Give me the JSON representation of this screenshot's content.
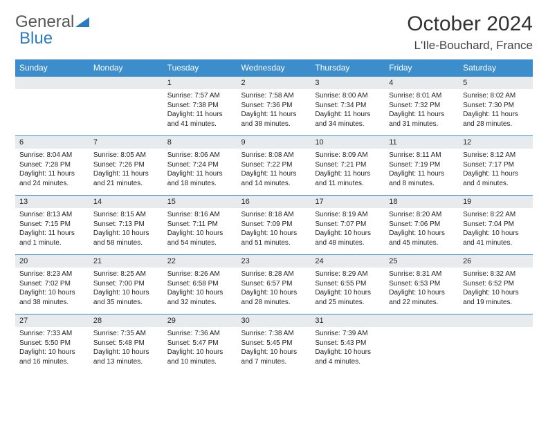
{
  "logo": {
    "text1": "General",
    "text2": "Blue"
  },
  "title": "October 2024",
  "location": "L'Ile-Bouchard, France",
  "colors": {
    "header_bg": "#3c8dcc",
    "daynum_bg": "#e8ebed",
    "rule": "#3c8dcc",
    "text": "#222222",
    "logo_gray": "#555555",
    "logo_blue": "#2b7bc3"
  },
  "weekdays": [
    "Sunday",
    "Monday",
    "Tuesday",
    "Wednesday",
    "Thursday",
    "Friday",
    "Saturday"
  ],
  "weeks": [
    [
      null,
      null,
      {
        "n": "1",
        "sr": "Sunrise: 7:57 AM",
        "ss": "Sunset: 7:38 PM",
        "dl": "Daylight: 11 hours and 41 minutes."
      },
      {
        "n": "2",
        "sr": "Sunrise: 7:58 AM",
        "ss": "Sunset: 7:36 PM",
        "dl": "Daylight: 11 hours and 38 minutes."
      },
      {
        "n": "3",
        "sr": "Sunrise: 8:00 AM",
        "ss": "Sunset: 7:34 PM",
        "dl": "Daylight: 11 hours and 34 minutes."
      },
      {
        "n": "4",
        "sr": "Sunrise: 8:01 AM",
        "ss": "Sunset: 7:32 PM",
        "dl": "Daylight: 11 hours and 31 minutes."
      },
      {
        "n": "5",
        "sr": "Sunrise: 8:02 AM",
        "ss": "Sunset: 7:30 PM",
        "dl": "Daylight: 11 hours and 28 minutes."
      }
    ],
    [
      {
        "n": "6",
        "sr": "Sunrise: 8:04 AM",
        "ss": "Sunset: 7:28 PM",
        "dl": "Daylight: 11 hours and 24 minutes."
      },
      {
        "n": "7",
        "sr": "Sunrise: 8:05 AM",
        "ss": "Sunset: 7:26 PM",
        "dl": "Daylight: 11 hours and 21 minutes."
      },
      {
        "n": "8",
        "sr": "Sunrise: 8:06 AM",
        "ss": "Sunset: 7:24 PM",
        "dl": "Daylight: 11 hours and 18 minutes."
      },
      {
        "n": "9",
        "sr": "Sunrise: 8:08 AM",
        "ss": "Sunset: 7:22 PM",
        "dl": "Daylight: 11 hours and 14 minutes."
      },
      {
        "n": "10",
        "sr": "Sunrise: 8:09 AM",
        "ss": "Sunset: 7:21 PM",
        "dl": "Daylight: 11 hours and 11 minutes."
      },
      {
        "n": "11",
        "sr": "Sunrise: 8:11 AM",
        "ss": "Sunset: 7:19 PM",
        "dl": "Daylight: 11 hours and 8 minutes."
      },
      {
        "n": "12",
        "sr": "Sunrise: 8:12 AM",
        "ss": "Sunset: 7:17 PM",
        "dl": "Daylight: 11 hours and 4 minutes."
      }
    ],
    [
      {
        "n": "13",
        "sr": "Sunrise: 8:13 AM",
        "ss": "Sunset: 7:15 PM",
        "dl": "Daylight: 11 hours and 1 minute."
      },
      {
        "n": "14",
        "sr": "Sunrise: 8:15 AM",
        "ss": "Sunset: 7:13 PM",
        "dl": "Daylight: 10 hours and 58 minutes."
      },
      {
        "n": "15",
        "sr": "Sunrise: 8:16 AM",
        "ss": "Sunset: 7:11 PM",
        "dl": "Daylight: 10 hours and 54 minutes."
      },
      {
        "n": "16",
        "sr": "Sunrise: 8:18 AM",
        "ss": "Sunset: 7:09 PM",
        "dl": "Daylight: 10 hours and 51 minutes."
      },
      {
        "n": "17",
        "sr": "Sunrise: 8:19 AM",
        "ss": "Sunset: 7:07 PM",
        "dl": "Daylight: 10 hours and 48 minutes."
      },
      {
        "n": "18",
        "sr": "Sunrise: 8:20 AM",
        "ss": "Sunset: 7:06 PM",
        "dl": "Daylight: 10 hours and 45 minutes."
      },
      {
        "n": "19",
        "sr": "Sunrise: 8:22 AM",
        "ss": "Sunset: 7:04 PM",
        "dl": "Daylight: 10 hours and 41 minutes."
      }
    ],
    [
      {
        "n": "20",
        "sr": "Sunrise: 8:23 AM",
        "ss": "Sunset: 7:02 PM",
        "dl": "Daylight: 10 hours and 38 minutes."
      },
      {
        "n": "21",
        "sr": "Sunrise: 8:25 AM",
        "ss": "Sunset: 7:00 PM",
        "dl": "Daylight: 10 hours and 35 minutes."
      },
      {
        "n": "22",
        "sr": "Sunrise: 8:26 AM",
        "ss": "Sunset: 6:58 PM",
        "dl": "Daylight: 10 hours and 32 minutes."
      },
      {
        "n": "23",
        "sr": "Sunrise: 8:28 AM",
        "ss": "Sunset: 6:57 PM",
        "dl": "Daylight: 10 hours and 28 minutes."
      },
      {
        "n": "24",
        "sr": "Sunrise: 8:29 AM",
        "ss": "Sunset: 6:55 PM",
        "dl": "Daylight: 10 hours and 25 minutes."
      },
      {
        "n": "25",
        "sr": "Sunrise: 8:31 AM",
        "ss": "Sunset: 6:53 PM",
        "dl": "Daylight: 10 hours and 22 minutes."
      },
      {
        "n": "26",
        "sr": "Sunrise: 8:32 AM",
        "ss": "Sunset: 6:52 PM",
        "dl": "Daylight: 10 hours and 19 minutes."
      }
    ],
    [
      {
        "n": "27",
        "sr": "Sunrise: 7:33 AM",
        "ss": "Sunset: 5:50 PM",
        "dl": "Daylight: 10 hours and 16 minutes."
      },
      {
        "n": "28",
        "sr": "Sunrise: 7:35 AM",
        "ss": "Sunset: 5:48 PM",
        "dl": "Daylight: 10 hours and 13 minutes."
      },
      {
        "n": "29",
        "sr": "Sunrise: 7:36 AM",
        "ss": "Sunset: 5:47 PM",
        "dl": "Daylight: 10 hours and 10 minutes."
      },
      {
        "n": "30",
        "sr": "Sunrise: 7:38 AM",
        "ss": "Sunset: 5:45 PM",
        "dl": "Daylight: 10 hours and 7 minutes."
      },
      {
        "n": "31",
        "sr": "Sunrise: 7:39 AM",
        "ss": "Sunset: 5:43 PM",
        "dl": "Daylight: 10 hours and 4 minutes."
      },
      null,
      null
    ]
  ]
}
